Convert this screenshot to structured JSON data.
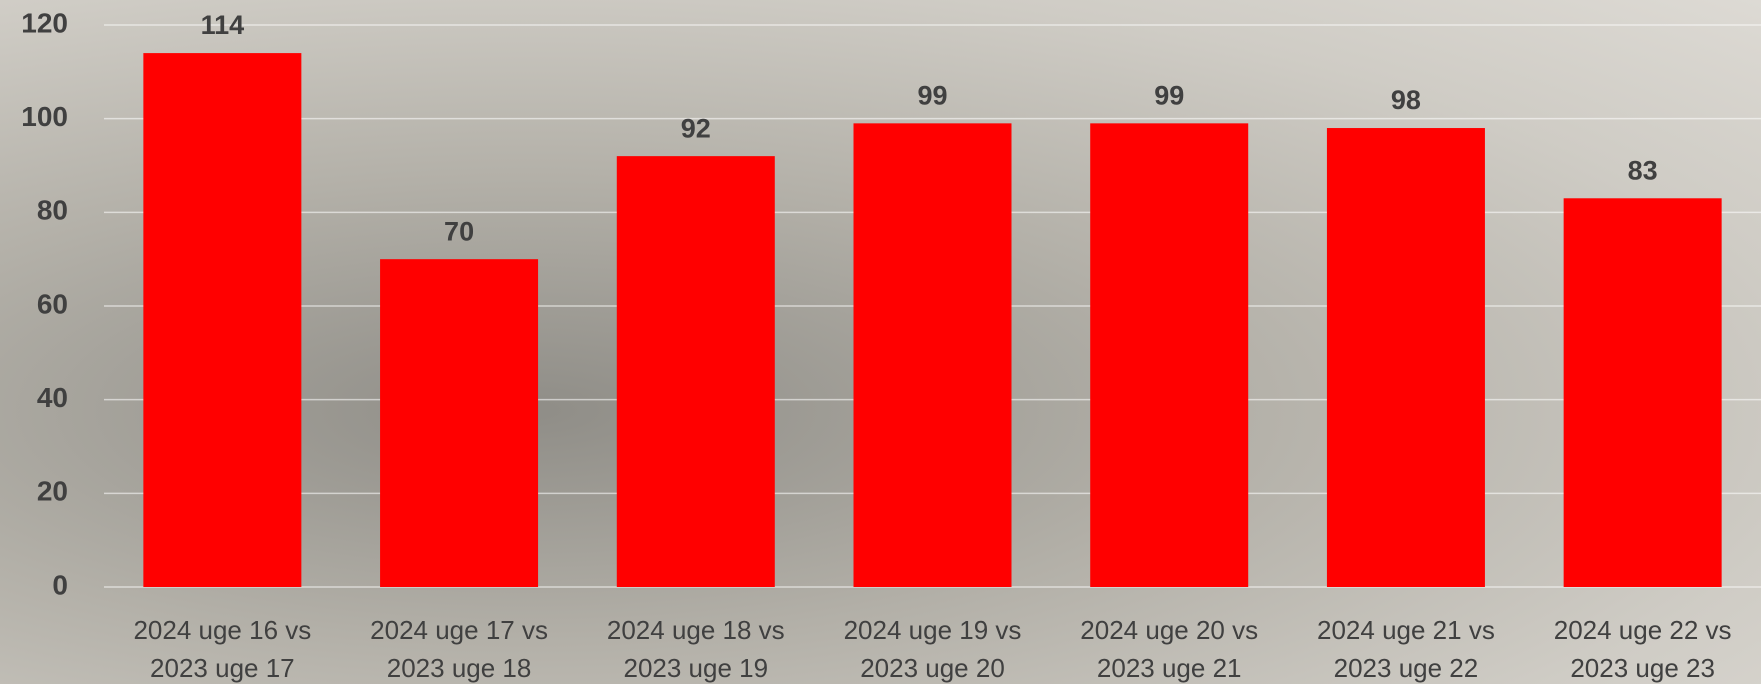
{
  "chart_data": {
    "type": "bar",
    "categories": [
      "2024 uge 16 vs 2023 uge 17",
      "2024 uge 17 vs 2023 uge 18",
      "2024 uge 18 vs 2023 uge 19",
      "2024 uge 19 vs 2023 uge 20",
      "2024 uge 20 vs 2023 uge 21",
      "2024 uge 21 vs 2023 uge 22",
      "2024 uge 22 vs 2023 uge 23"
    ],
    "values": [
      114,
      70,
      92,
      99,
      99,
      98,
      83
    ],
    "color": "#ff0000",
    "ylim": [
      0,
      120
    ],
    "yticks": [
      0,
      20,
      40,
      60,
      80,
      100,
      120
    ],
    "grid": true
  }
}
